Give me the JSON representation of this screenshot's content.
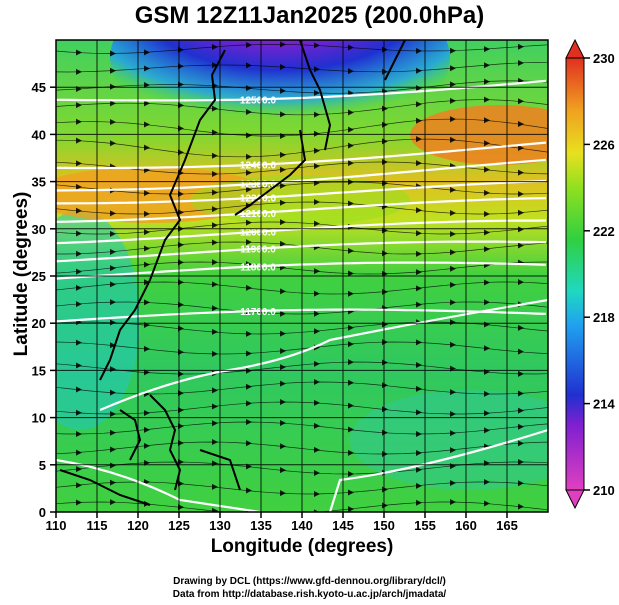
{
  "title": "GSM 12Z11Jan2025 (200.0hPa)",
  "xlabel": "Longitude (degrees)",
  "ylabel": "Latitude  (degrees)",
  "credit_line1": "Drawing by DCL (https://www.gfd-dennou.org/library/dcl/)",
  "credit_line2": "Data from http://database.rish.kyoto-u.ac.jp/arch/jmadata/",
  "x_ticks": [
    "110",
    "115",
    "120",
    "125",
    "130",
    "135",
    "140",
    "145",
    "150",
    "155",
    "160",
    "165"
  ],
  "y_ticks": [
    "0",
    "5",
    "10",
    "15",
    "20",
    "25",
    "30",
    "35",
    "40",
    "45"
  ],
  "colorbar_ticks": [
    "210",
    "214",
    "218",
    "222",
    "226",
    "230"
  ],
  "contour_labels": [
    "12500.0",
    "12400.0",
    "12300.0",
    "12200.0",
    "12100.0",
    "12000.0",
    "11900.0",
    "11800.0",
    "11700.0"
  ],
  "chart_data": {
    "type": "heatmap",
    "title": "GSM 12Z11Jan2025 (200.0hPa)",
    "xlabel": "Longitude (degrees)",
    "ylabel": "Latitude  (degrees)",
    "xlim": [
      110,
      170
    ],
    "ylim": [
      0,
      50
    ],
    "color_range": [
      210,
      230
    ],
    "colorbar_ticks": [
      210,
      214,
      218,
      222,
      226,
      230
    ],
    "colormap": [
      "#e040c0",
      "#3030d0",
      "#20b0e0",
      "#30d060",
      "#a0e020",
      "#f0b020",
      "#e04020"
    ],
    "overlays": [
      "streamlines of wind (arrows)",
      "white height contours",
      "coastlines"
    ]
  }
}
